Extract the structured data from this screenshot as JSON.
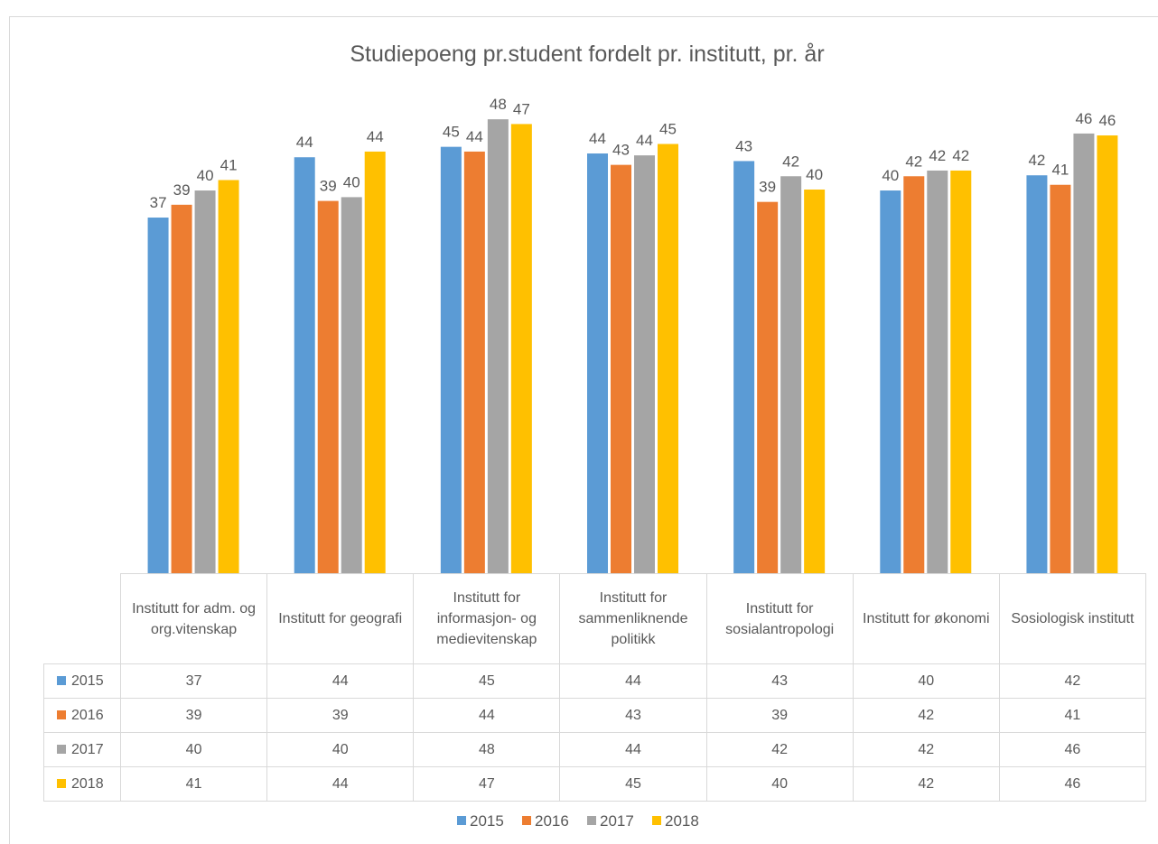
{
  "chart_data": {
    "type": "bar",
    "title": "Studiepoeng pr.student fordelt pr. institutt, pr. år",
    "categories": [
      "Institutt for adm. og org.vitenskap",
      "Institutt for geografi",
      "Institutt for informasjon- og medievitenskap",
      "Institutt for sammenliknende politikk",
      "Institutt for sosialantropologi",
      "Institutt for økonomi",
      "Sosiologisk institutt"
    ],
    "series": [
      {
        "name": "2015",
        "color": "#5b9bd5",
        "values": [
          37.45,
          43.8,
          44.9,
          44.2,
          43.4,
          40.3,
          41.9
        ],
        "value_labels": [
          "37",
          "44",
          "45",
          "44",
          "43",
          "40",
          "42"
        ]
      },
      {
        "name": "2016",
        "color": "#ed7d31",
        "values": [
          38.8,
          39.2,
          44.4,
          43.0,
          39.1,
          41.8,
          40.9
        ],
        "value_labels": [
          "39",
          "39",
          "44",
          "43",
          "39",
          "42",
          "41"
        ]
      },
      {
        "name": "2017",
        "color": "#a5a5a5",
        "values": [
          40.3,
          39.6,
          47.8,
          44.0,
          41.8,
          42.4,
          46.3
        ],
        "value_labels": [
          "40",
          "40",
          "48",
          "44",
          "42",
          "42",
          "46"
        ]
      },
      {
        "name": "2018",
        "color": "#ffc000",
        "values": [
          41.4,
          44.4,
          47.3,
          45.2,
          40.4,
          42.4,
          46.1
        ],
        "value_labels": [
          "41",
          "44",
          "47",
          "45",
          "40",
          "42",
          "46"
        ]
      }
    ],
    "ylim": [
      0,
      50
    ],
    "legend": "bottom",
    "data_table": true
  }
}
